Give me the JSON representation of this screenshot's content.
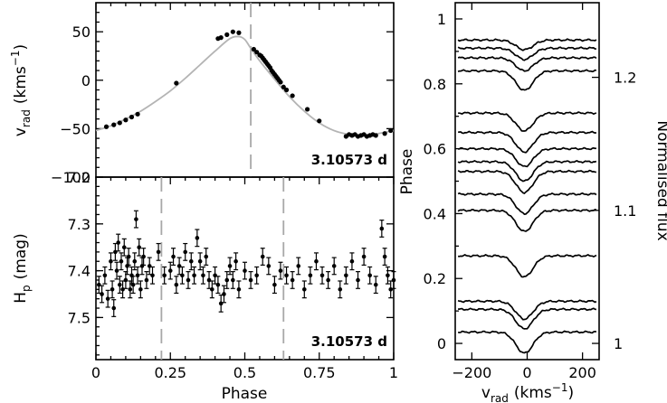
{
  "chart_data": [
    {
      "id": "rv",
      "type": "scatter",
      "ylabel_main": "v",
      "ylabel_sub": "rad",
      "ylabel_unit": "(kms",
      "ylabel_exp": "−1",
      "ylabel_close": ")",
      "annotation": "3.10573 d",
      "xlim": [
        0,
        1
      ],
      "ylim": [
        -100,
        80
      ],
      "yticks": [
        -100,
        -50,
        0,
        50
      ],
      "ytick_labels": [
        "−100",
        "−50",
        "0",
        "50"
      ],
      "dashed_x": [
        0.52
      ],
      "model_curve": {
        "x": [
          0.0,
          0.05,
          0.1,
          0.15,
          0.2,
          0.25,
          0.3,
          0.35,
          0.4,
          0.45,
          0.48,
          0.5,
          0.52,
          0.55,
          0.6,
          0.65,
          0.7,
          0.75,
          0.8,
          0.85,
          0.9,
          0.95,
          1.0
        ],
        "y": [
          -52,
          -47,
          -40,
          -32,
          -22,
          -11,
          2,
          16,
          30,
          43,
          45,
          42,
          33,
          20,
          1,
          -17,
          -32,
          -44,
          -52,
          -56,
          -57,
          -55,
          -52
        ]
      },
      "points": {
        "x": [
          0.035,
          0.06,
          0.08,
          0.1,
          0.12,
          0.14,
          0.27,
          0.41,
          0.42,
          0.44,
          0.46,
          0.48,
          0.53,
          0.54,
          0.55,
          0.555,
          0.56,
          0.565,
          0.57,
          0.575,
          0.58,
          0.585,
          0.59,
          0.595,
          0.6,
          0.605,
          0.61,
          0.615,
          0.62,
          0.63,
          0.64,
          0.66,
          0.71,
          0.75,
          0.84,
          0.85,
          0.86,
          0.87,
          0.88,
          0.89,
          0.9,
          0.91,
          0.92,
          0.93,
          0.94,
          0.97,
          0.99
        ],
        "y": [
          -48,
          -46,
          -44,
          -41,
          -38,
          -35,
          -3,
          43,
          44,
          47,
          50,
          49,
          32,
          29,
          26,
          25,
          23,
          21,
          19,
          17,
          15,
          13,
          10,
          8,
          6,
          4,
          2,
          0,
          -2,
          -7,
          -10,
          -16,
          -30,
          -42,
          -58,
          -56,
          -57,
          -56,
          -58,
          -57,
          -56,
          -58,
          -57,
          -56,
          -57,
          -55,
          -52
        ]
      }
    },
    {
      "id": "hp",
      "type": "scatter",
      "ylabel_main": "H",
      "ylabel_sub": "p",
      "ylabel_unit": "(mag)",
      "xlabel": "Phase",
      "annotation": "3.10573 d",
      "xlim": [
        0,
        1
      ],
      "ylim": [
        7.59,
        7.2
      ],
      "yticks": [
        7.2,
        7.3,
        7.4,
        7.5
      ],
      "ytick_labels": [
        "7.2",
        "7.3",
        "7.4",
        "7.5"
      ],
      "xticks": [
        0,
        0.25,
        0.5,
        0.75,
        1
      ],
      "xtick_labels": [
        "0",
        "0.25",
        "0.5",
        "0.75",
        "1"
      ],
      "dashed_x": [
        0.22,
        0.63
      ],
      "error": 0.018,
      "points": {
        "x": [
          0.01,
          0.02,
          0.03,
          0.04,
          0.05,
          0.055,
          0.06,
          0.065,
          0.07,
          0.075,
          0.08,
          0.085,
          0.09,
          0.095,
          0.1,
          0.105,
          0.11,
          0.115,
          0.12,
          0.125,
          0.13,
          0.135,
          0.14,
          0.145,
          0.15,
          0.155,
          0.16,
          0.17,
          0.18,
          0.19,
          0.21,
          0.23,
          0.25,
          0.26,
          0.27,
          0.28,
          0.29,
          0.3,
          0.31,
          0.32,
          0.33,
          0.34,
          0.35,
          0.36,
          0.37,
          0.38,
          0.39,
          0.4,
          0.41,
          0.42,
          0.43,
          0.44,
          0.45,
          0.46,
          0.47,
          0.48,
          0.5,
          0.52,
          0.54,
          0.56,
          0.58,
          0.6,
          0.62,
          0.64,
          0.66,
          0.68,
          0.7,
          0.72,
          0.74,
          0.76,
          0.78,
          0.8,
          0.82,
          0.84,
          0.86,
          0.88,
          0.9,
          0.92,
          0.94,
          0.96,
          0.97,
          0.98,
          0.99,
          1.0
        ],
        "y": [
          7.43,
          7.45,
          7.41,
          7.46,
          7.38,
          7.44,
          7.48,
          7.36,
          7.4,
          7.34,
          7.43,
          7.38,
          7.44,
          7.35,
          7.42,
          7.39,
          7.37,
          7.44,
          7.41,
          7.43,
          7.38,
          7.29,
          7.41,
          7.35,
          7.44,
          7.39,
          7.37,
          7.42,
          7.39,
          7.41,
          7.36,
          7.41,
          7.4,
          7.37,
          7.43,
          7.39,
          7.41,
          7.36,
          7.42,
          7.38,
          7.41,
          7.33,
          7.38,
          7.41,
          7.37,
          7.42,
          7.44,
          7.41,
          7.43,
          7.47,
          7.45,
          7.42,
          7.39,
          7.42,
          7.38,
          7.44,
          7.4,
          7.42,
          7.41,
          7.37,
          7.39,
          7.43,
          7.4,
          7.41,
          7.42,
          7.39,
          7.44,
          7.41,
          7.38,
          7.41,
          7.42,
          7.39,
          7.44,
          7.41,
          7.38,
          7.42,
          7.37,
          7.41,
          7.43,
          7.31,
          7.37,
          7.41,
          7.44,
          7.42
        ]
      }
    },
    {
      "id": "lsd",
      "type": "line",
      "xlabel_main": "v",
      "xlabel_sub": "rad",
      "xlabel_unit": "(kms",
      "xlabel_exp": "−1",
      "xlabel_close": ")",
      "ylabel_left": "Phase",
      "ylabel_right": "Normalised flux",
      "xlim": [
        -260,
        260
      ],
      "xticks": [
        -200,
        0,
        200
      ],
      "xtick_labels": [
        "−200",
        "0",
        "200"
      ],
      "ylim_phase": [
        -0.05,
        1.05
      ],
      "yticks_phase": [
        0,
        0.2,
        0.4,
        0.6,
        0.8,
        1
      ],
      "ytick_phase_labels": [
        "0",
        "0.2",
        "0.4",
        "0.6",
        "0.8",
        "1"
      ],
      "flux_ticks": [
        1,
        1.1,
        1.2
      ],
      "flux_tick_labels": [
        "1",
        "1.1",
        "1.2"
      ],
      "profile_center": -10,
      "profile_width": 55,
      "profiles": [
        {
          "phase": 0.035,
          "depth": 0.065
        },
        {
          "phase": 0.105,
          "depth": 0.06
        },
        {
          "phase": 0.13,
          "depth": 0.055
        },
        {
          "phase": 0.27,
          "depth": 0.065
        },
        {
          "phase": 0.41,
          "depth": 0.065
        },
        {
          "phase": 0.46,
          "depth": 0.06
        },
        {
          "phase": 0.53,
          "depth": 0.065
        },
        {
          "phase": 0.56,
          "depth": 0.06
        },
        {
          "phase": 0.6,
          "depth": 0.055
        },
        {
          "phase": 0.65,
          "depth": 0.06
        },
        {
          "phase": 0.71,
          "depth": 0.055
        },
        {
          "phase": 0.84,
          "depth": 0.06
        },
        {
          "phase": 0.88,
          "depth": 0.04
        },
        {
          "phase": 0.91,
          "depth": 0.035
        },
        {
          "phase": 0.935,
          "depth": 0.03
        }
      ]
    }
  ]
}
